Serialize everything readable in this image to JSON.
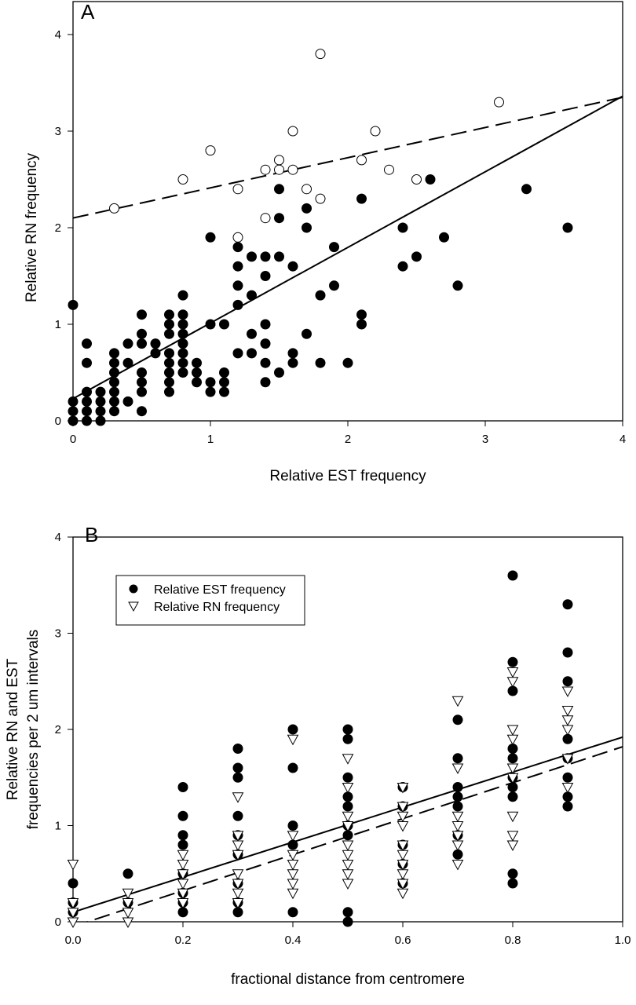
{
  "chart_data": [
    {
      "panel": "A",
      "type": "scatter",
      "xlabel": "Relative EST frequency",
      "ylabel": "Relative RN frequency",
      "xlim": [
        0,
        4
      ],
      "ylim": [
        0,
        4
      ],
      "xticks": [
        "0",
        "1",
        "2",
        "3",
        "4"
      ],
      "yticks": [
        "0",
        "1",
        "2",
        "3",
        "4"
      ],
      "series": [
        {
          "name": "filled",
          "marker": "filled-circle",
          "points": [
            [
              0,
              0
            ],
            [
              0,
              0.1
            ],
            [
              0,
              0.2
            ],
            [
              0,
              1.2
            ],
            [
              0.1,
              0
            ],
            [
              0.1,
              0.1
            ],
            [
              0.1,
              0.2
            ],
            [
              0.1,
              0.3
            ],
            [
              0.1,
              0.6
            ],
            [
              0.1,
              0.8
            ],
            [
              0.2,
              0
            ],
            [
              0.2,
              0.1
            ],
            [
              0.2,
              0.2
            ],
            [
              0.2,
              0.3
            ],
            [
              0.3,
              0.1
            ],
            [
              0.3,
              0.2
            ],
            [
              0.3,
              0.3
            ],
            [
              0.3,
              0.4
            ],
            [
              0.3,
              0.5
            ],
            [
              0.3,
              0.6
            ],
            [
              0.3,
              0.7
            ],
            [
              0.4,
              0.2
            ],
            [
              0.4,
              0.6
            ],
            [
              0.4,
              0.8
            ],
            [
              0.5,
              0.1
            ],
            [
              0.5,
              0.3
            ],
            [
              0.5,
              0.4
            ],
            [
              0.5,
              0.5
            ],
            [
              0.5,
              0.8
            ],
            [
              0.5,
              0.9
            ],
            [
              0.5,
              1.1
            ],
            [
              0.6,
              0.7
            ],
            [
              0.6,
              0.8
            ],
            [
              0.7,
              0.3
            ],
            [
              0.7,
              0.4
            ],
            [
              0.7,
              0.5
            ],
            [
              0.7,
              0.6
            ],
            [
              0.7,
              0.7
            ],
            [
              0.7,
              0.9
            ],
            [
              0.7,
              1.0
            ],
            [
              0.7,
              1.1
            ],
            [
              0.8,
              0.5
            ],
            [
              0.8,
              0.6
            ],
            [
              0.8,
              0.7
            ],
            [
              0.8,
              0.8
            ],
            [
              0.8,
              0.9
            ],
            [
              0.8,
              1.0
            ],
            [
              0.8,
              1.1
            ],
            [
              0.8,
              1.3
            ],
            [
              0.9,
              0.4
            ],
            [
              0.9,
              0.5
            ],
            [
              0.9,
              0.6
            ],
            [
              1.0,
              0.3
            ],
            [
              1.0,
              0.4
            ],
            [
              1.0,
              1.0
            ],
            [
              1.0,
              1.9
            ],
            [
              1.1,
              0.3
            ],
            [
              1.1,
              0.4
            ],
            [
              1.1,
              0.5
            ],
            [
              1.1,
              1.0
            ],
            [
              1.2,
              0.7
            ],
            [
              1.2,
              1.2
            ],
            [
              1.2,
              1.4
            ],
            [
              1.2,
              1.6
            ],
            [
              1.2,
              1.8
            ],
            [
              1.3,
              0.7
            ],
            [
              1.3,
              0.9
            ],
            [
              1.3,
              1.3
            ],
            [
              1.3,
              1.7
            ],
            [
              1.4,
              0.4
            ],
            [
              1.4,
              0.6
            ],
            [
              1.4,
              0.8
            ],
            [
              1.4,
              1.0
            ],
            [
              1.4,
              1.5
            ],
            [
              1.4,
              1.7
            ],
            [
              1.5,
              0.5
            ],
            [
              1.5,
              1.7
            ],
            [
              1.5,
              2.1
            ],
            [
              1.5,
              2.4
            ],
            [
              1.6,
              0.6
            ],
            [
              1.6,
              0.7
            ],
            [
              1.6,
              1.6
            ],
            [
              1.7,
              0.9
            ],
            [
              1.7,
              2.0
            ],
            [
              1.7,
              2.2
            ],
            [
              1.8,
              0.6
            ],
            [
              1.8,
              1.3
            ],
            [
              1.9,
              1.4
            ],
            [
              1.9,
              1.8
            ],
            [
              2.0,
              0.6
            ],
            [
              2.1,
              1.0
            ],
            [
              2.1,
              1.1
            ],
            [
              2.1,
              2.3
            ],
            [
              2.4,
              1.6
            ],
            [
              2.4,
              2.0
            ],
            [
              2.5,
              1.7
            ],
            [
              2.6,
              2.5
            ],
            [
              2.7,
              1.9
            ],
            [
              2.8,
              1.4
            ],
            [
              3.3,
              2.4
            ],
            [
              3.6,
              2.0
            ]
          ],
          "fit": {
            "style": "solid",
            "intercept": 0.23,
            "slope": 0.783
          }
        },
        {
          "name": "open",
          "marker": "open-circle",
          "points": [
            [
              0.3,
              2.2
            ],
            [
              0.8,
              2.5
            ],
            [
              1.0,
              2.8
            ],
            [
              1.2,
              2.4
            ],
            [
              1.2,
              1.9
            ],
            [
              1.4,
              2.6
            ],
            [
              1.4,
              2.1
            ],
            [
              1.5,
              2.7
            ],
            [
              1.5,
              2.6
            ],
            [
              1.6,
              3.0
            ],
            [
              1.6,
              2.6
            ],
            [
              1.7,
              2.4
            ],
            [
              1.8,
              3.8
            ],
            [
              1.8,
              2.3
            ],
            [
              2.1,
              2.7
            ],
            [
              2.2,
              3.0
            ],
            [
              2.3,
              2.6
            ],
            [
              2.5,
              2.5
            ],
            [
              3.1,
              3.3
            ]
          ],
          "fit": {
            "style": "dashed",
            "intercept": 2.1,
            "slope": 0.3125
          }
        }
      ]
    },
    {
      "panel": "B",
      "type": "scatter",
      "xlabel": "fractional distance from centromere",
      "ylabel_lines": [
        "Relative RN and EST",
        "frequencies per 2 um intervals"
      ],
      "xlim": [
        0,
        1
      ],
      "ylim": [
        0,
        4
      ],
      "xticks": [
        "0.0",
        "0.2",
        "0.4",
        "0.6",
        "0.8",
        "1.0"
      ],
      "yticks": [
        "0",
        "1",
        "2",
        "3",
        "4"
      ],
      "legend": {
        "position": "top-left"
      },
      "series": [
        {
          "name": "Relative EST frequency",
          "marker": "filled-circle",
          "points": [
            [
              0,
              0.4
            ],
            [
              0,
              0.2
            ],
            [
              0,
              0.1
            ],
            [
              0.1,
              0.5
            ],
            [
              0.1,
              0.2
            ],
            [
              0.2,
              1.4
            ],
            [
              0.2,
              1.1
            ],
            [
              0.2,
              0.9
            ],
            [
              0.2,
              0.8
            ],
            [
              0.2,
              0.5
            ],
            [
              0.2,
              0.3
            ],
            [
              0.2,
              0.2
            ],
            [
              0.2,
              0.1
            ],
            [
              0.3,
              1.8
            ],
            [
              0.3,
              1.6
            ],
            [
              0.3,
              1.5
            ],
            [
              0.3,
              1.1
            ],
            [
              0.3,
              0.9
            ],
            [
              0.3,
              0.7
            ],
            [
              0.3,
              0.4
            ],
            [
              0.3,
              0.2
            ],
            [
              0.3,
              0.1
            ],
            [
              0.4,
              2.0
            ],
            [
              0.4,
              1.6
            ],
            [
              0.4,
              1.0
            ],
            [
              0.4,
              0.8
            ],
            [
              0.4,
              0.1
            ],
            [
              0.5,
              2.0
            ],
            [
              0.5,
              1.9
            ],
            [
              0.5,
              1.5
            ],
            [
              0.5,
              1.3
            ],
            [
              0.5,
              1.2
            ],
            [
              0.5,
              1.0
            ],
            [
              0.5,
              0.9
            ],
            [
              0.5,
              0.1
            ],
            [
              0.5,
              0
            ],
            [
              0.6,
              1.4
            ],
            [
              0.6,
              1.2
            ],
            [
              0.6,
              0.8
            ],
            [
              0.6,
              0.6
            ],
            [
              0.6,
              0.4
            ],
            [
              0.7,
              2.1
            ],
            [
              0.7,
              1.7
            ],
            [
              0.7,
              1.4
            ],
            [
              0.7,
              1.3
            ],
            [
              0.7,
              1.2
            ],
            [
              0.7,
              0.9
            ],
            [
              0.7,
              0.7
            ],
            [
              0.8,
              3.6
            ],
            [
              0.8,
              2.7
            ],
            [
              0.8,
              2.4
            ],
            [
              0.8,
              1.8
            ],
            [
              0.8,
              1.7
            ],
            [
              0.8,
              1.5
            ],
            [
              0.8,
              1.4
            ],
            [
              0.8,
              1.3
            ],
            [
              0.8,
              0.5
            ],
            [
              0.8,
              0.4
            ],
            [
              0.9,
              3.3
            ],
            [
              0.9,
              2.8
            ],
            [
              0.9,
              2.5
            ],
            [
              0.9,
              1.9
            ],
            [
              0.9,
              1.7
            ],
            [
              0.9,
              1.5
            ],
            [
              0.9,
              1.3
            ],
            [
              0.9,
              1.2
            ]
          ],
          "fit": {
            "style": "solid",
            "intercept": 0.1,
            "slope": 1.82
          }
        },
        {
          "name": "Relative RN frequency",
          "marker": "open-triangle-down",
          "points": [
            [
              0,
              0.6
            ],
            [
              0,
              0.2
            ],
            [
              0,
              0.1
            ],
            [
              0,
              0
            ],
            [
              0.1,
              0.3
            ],
            [
              0.1,
              0.2
            ],
            [
              0.1,
              0.1
            ],
            [
              0.1,
              0
            ],
            [
              0.2,
              0.7
            ],
            [
              0.2,
              0.6
            ],
            [
              0.2,
              0.5
            ],
            [
              0.2,
              0.4
            ],
            [
              0.2,
              0.3
            ],
            [
              0.2,
              0.2
            ],
            [
              0.3,
              1.3
            ],
            [
              0.3,
              0.9
            ],
            [
              0.3,
              0.8
            ],
            [
              0.3,
              0.7
            ],
            [
              0.3,
              0.5
            ],
            [
              0.3,
              0.4
            ],
            [
              0.3,
              0.3
            ],
            [
              0.3,
              0.2
            ],
            [
              0.4,
              1.9
            ],
            [
              0.4,
              0.9
            ],
            [
              0.4,
              0.7
            ],
            [
              0.4,
              0.6
            ],
            [
              0.4,
              0.5
            ],
            [
              0.4,
              0.4
            ],
            [
              0.4,
              0.3
            ],
            [
              0.5,
              1.7
            ],
            [
              0.5,
              1.4
            ],
            [
              0.5,
              1.1
            ],
            [
              0.5,
              1.0
            ],
            [
              0.5,
              0.8
            ],
            [
              0.5,
              0.7
            ],
            [
              0.5,
              0.6
            ],
            [
              0.5,
              0.5
            ],
            [
              0.5,
              0.4
            ],
            [
              0.6,
              1.4
            ],
            [
              0.6,
              1.2
            ],
            [
              0.6,
              1.1
            ],
            [
              0.6,
              1.0
            ],
            [
              0.6,
              0.8
            ],
            [
              0.6,
              0.7
            ],
            [
              0.6,
              0.6
            ],
            [
              0.6,
              0.5
            ],
            [
              0.6,
              0.4
            ],
            [
              0.6,
              0.3
            ],
            [
              0.7,
              2.3
            ],
            [
              0.7,
              1.6
            ],
            [
              0.7,
              1.1
            ],
            [
              0.7,
              1.0
            ],
            [
              0.7,
              0.9
            ],
            [
              0.7,
              0.8
            ],
            [
              0.7,
              0.6
            ],
            [
              0.8,
              2.6
            ],
            [
              0.8,
              2.5
            ],
            [
              0.8,
              2.0
            ],
            [
              0.8,
              1.9
            ],
            [
              0.8,
              1.6
            ],
            [
              0.8,
              1.5
            ],
            [
              0.8,
              1.1
            ],
            [
              0.8,
              0.9
            ],
            [
              0.8,
              0.8
            ],
            [
              0.9,
              2.4
            ],
            [
              0.9,
              2.2
            ],
            [
              0.9,
              2.1
            ],
            [
              0.9,
              2.0
            ],
            [
              0.9,
              1.7
            ],
            [
              0.9,
              1.4
            ]
          ],
          "fit": {
            "style": "dashed",
            "intercept": -0.05,
            "slope": 1.87
          }
        }
      ]
    }
  ]
}
